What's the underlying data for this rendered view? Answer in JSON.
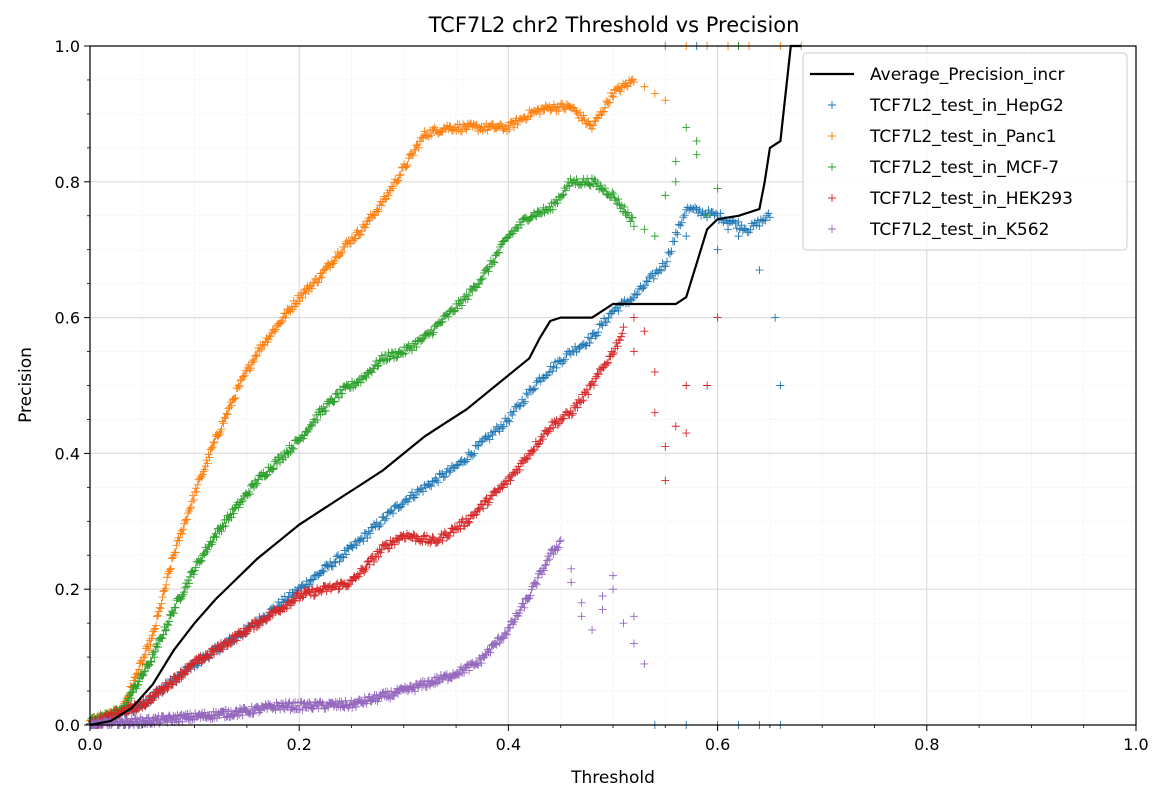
{
  "chart_data": {
    "type": "scatter",
    "title": "TCF7L2 chr2 Threshold vs Precision",
    "xlabel": "Threshold",
    "ylabel": "Precision",
    "xlim": [
      0.0,
      1.0
    ],
    "ylim": [
      0.0,
      1.0
    ],
    "xticks": [
      "0.0",
      "0.2",
      "0.4",
      "0.6",
      "0.8",
      "1.0"
    ],
    "yticks": [
      "0.0",
      "0.2",
      "0.4",
      "0.6",
      "0.8",
      "1.0"
    ],
    "grid": true,
    "minor_grid": true,
    "legend_position": "top-right",
    "line_series": {
      "name": "Average_Precision_incr",
      "color": "#000000",
      "points": [
        [
          0.0,
          0.0
        ],
        [
          0.02,
          0.006
        ],
        [
          0.04,
          0.025
        ],
        [
          0.06,
          0.06
        ],
        [
          0.08,
          0.11
        ],
        [
          0.1,
          0.15
        ],
        [
          0.12,
          0.185
        ],
        [
          0.14,
          0.215
        ],
        [
          0.16,
          0.245
        ],
        [
          0.18,
          0.27
        ],
        [
          0.2,
          0.295
        ],
        [
          0.22,
          0.315
        ],
        [
          0.24,
          0.335
        ],
        [
          0.26,
          0.355
        ],
        [
          0.28,
          0.375
        ],
        [
          0.3,
          0.4
        ],
        [
          0.32,
          0.425
        ],
        [
          0.34,
          0.445
        ],
        [
          0.36,
          0.465
        ],
        [
          0.38,
          0.49
        ],
        [
          0.4,
          0.515
        ],
        [
          0.42,
          0.54
        ],
        [
          0.43,
          0.57
        ],
        [
          0.44,
          0.595
        ],
        [
          0.45,
          0.6
        ],
        [
          0.48,
          0.6
        ],
        [
          0.5,
          0.62
        ],
        [
          0.56,
          0.62
        ],
        [
          0.57,
          0.63
        ],
        [
          0.58,
          0.68
        ],
        [
          0.59,
          0.73
        ],
        [
          0.6,
          0.745
        ],
        [
          0.62,
          0.75
        ],
        [
          0.64,
          0.76
        ],
        [
          0.645,
          0.8
        ],
        [
          0.65,
          0.85
        ],
        [
          0.66,
          0.86
        ],
        [
          0.665,
          0.93
        ],
        [
          0.67,
          1.0
        ],
        [
          0.68,
          1.0
        ]
      ]
    },
    "series": [
      {
        "name": "TCF7L2_test_in_HepG2",
        "color": "#1f77b4",
        "anchors": [
          [
            0.0,
            0.0
          ],
          [
            0.05,
            0.03
          ],
          [
            0.1,
            0.09
          ],
          [
            0.15,
            0.14
          ],
          [
            0.2,
            0.2
          ],
          [
            0.25,
            0.26
          ],
          [
            0.3,
            0.33
          ],
          [
            0.35,
            0.38
          ],
          [
            0.4,
            0.45
          ],
          [
            0.43,
            0.51
          ],
          [
            0.46,
            0.55
          ],
          [
            0.48,
            0.57
          ],
          [
            0.5,
            0.61
          ],
          [
            0.52,
            0.63
          ],
          [
            0.55,
            0.68
          ],
          [
            0.57,
            0.76
          ],
          [
            0.6,
            0.75
          ],
          [
            0.63,
            0.73
          ],
          [
            0.65,
            0.75
          ]
        ],
        "outliers": [
          [
            0.58,
            0.76
          ],
          [
            0.61,
            0.73
          ],
          [
            0.62,
            0.72
          ],
          [
            0.64,
            0.67
          ],
          [
            0.655,
            0.6
          ],
          [
            0.66,
            0.5
          ],
          [
            0.57,
            0.72
          ],
          [
            0.6,
            0.7
          ],
          [
            0.55,
            1.0
          ],
          [
            0.58,
            1.0
          ],
          [
            0.62,
            1.0
          ],
          [
            0.54,
            0.0
          ],
          [
            0.57,
            0.0
          ],
          [
            0.6,
            0.0
          ],
          [
            0.62,
            0.0
          ],
          [
            0.64,
            0.0
          ],
          [
            0.66,
            0.0
          ]
        ]
      },
      {
        "name": "TCF7L2_test_in_Panc1",
        "color": "#ff7f0e",
        "anchors": [
          [
            0.0,
            0.005
          ],
          [
            0.03,
            0.02
          ],
          [
            0.06,
            0.13
          ],
          [
            0.08,
            0.25
          ],
          [
            0.1,
            0.34
          ],
          [
            0.12,
            0.42
          ],
          [
            0.14,
            0.49
          ],
          [
            0.16,
            0.55
          ],
          [
            0.18,
            0.59
          ],
          [
            0.2,
            0.63
          ],
          [
            0.22,
            0.66
          ],
          [
            0.24,
            0.7
          ],
          [
            0.26,
            0.73
          ],
          [
            0.28,
            0.77
          ],
          [
            0.3,
            0.82
          ],
          [
            0.32,
            0.87
          ],
          [
            0.34,
            0.88
          ],
          [
            0.36,
            0.88
          ],
          [
            0.38,
            0.88
          ],
          [
            0.4,
            0.88
          ],
          [
            0.42,
            0.9
          ],
          [
            0.44,
            0.91
          ],
          [
            0.46,
            0.91
          ],
          [
            0.48,
            0.88
          ],
          [
            0.5,
            0.93
          ],
          [
            0.52,
            0.95
          ]
        ],
        "outliers": [
          [
            0.53,
            0.94
          ],
          [
            0.54,
            0.93
          ],
          [
            0.55,
            0.92
          ],
          [
            0.55,
            1.0
          ],
          [
            0.57,
            1.0
          ],
          [
            0.59,
            1.0
          ],
          [
            0.61,
            1.0
          ],
          [
            0.63,
            1.0
          ],
          [
            0.66,
            1.0
          ],
          [
            0.68,
            1.0
          ]
        ]
      },
      {
        "name": "TCF7L2_test_in_MCF-7",
        "color": "#2ca02c",
        "anchors": [
          [
            0.0,
            0.005
          ],
          [
            0.03,
            0.02
          ],
          [
            0.06,
            0.1
          ],
          [
            0.08,
            0.17
          ],
          [
            0.1,
            0.23
          ],
          [
            0.12,
            0.28
          ],
          [
            0.14,
            0.32
          ],
          [
            0.16,
            0.36
          ],
          [
            0.18,
            0.39
          ],
          [
            0.2,
            0.42
          ],
          [
            0.22,
            0.46
          ],
          [
            0.24,
            0.49
          ],
          [
            0.26,
            0.51
          ],
          [
            0.28,
            0.54
          ],
          [
            0.3,
            0.55
          ],
          [
            0.32,
            0.57
          ],
          [
            0.34,
            0.6
          ],
          [
            0.36,
            0.63
          ],
          [
            0.38,
            0.67
          ],
          [
            0.4,
            0.72
          ],
          [
            0.42,
            0.75
          ],
          [
            0.44,
            0.76
          ],
          [
            0.46,
            0.8
          ],
          [
            0.48,
            0.8
          ],
          [
            0.5,
            0.78
          ],
          [
            0.52,
            0.74
          ]
        ],
        "outliers": [
          [
            0.53,
            0.73
          ],
          [
            0.54,
            0.72
          ],
          [
            0.56,
            0.8
          ],
          [
            0.57,
            0.88
          ],
          [
            0.58,
            0.86
          ],
          [
            0.58,
            0.84
          ],
          [
            0.55,
            0.78
          ],
          [
            0.56,
            0.83
          ],
          [
            0.6,
            0.79
          ],
          [
            0.62,
            1.0
          ],
          [
            0.59,
            0.75
          ]
        ]
      },
      {
        "name": "TCF7L2_test_in_HEK293",
        "color": "#d62728",
        "anchors": [
          [
            0.0,
            0.0
          ],
          [
            0.05,
            0.03
          ],
          [
            0.1,
            0.09
          ],
          [
            0.15,
            0.14
          ],
          [
            0.2,
            0.19
          ],
          [
            0.25,
            0.21
          ],
          [
            0.28,
            0.26
          ],
          [
            0.3,
            0.28
          ],
          [
            0.33,
            0.27
          ],
          [
            0.36,
            0.3
          ],
          [
            0.4,
            0.36
          ],
          [
            0.42,
            0.4
          ],
          [
            0.44,
            0.44
          ],
          [
            0.46,
            0.46
          ],
          [
            0.48,
            0.5
          ],
          [
            0.5,
            0.55
          ],
          [
            0.51,
            0.58
          ]
        ],
        "outliers": [
          [
            0.52,
            0.55
          ],
          [
            0.52,
            0.6
          ],
          [
            0.53,
            0.58
          ],
          [
            0.54,
            0.52
          ],
          [
            0.54,
            0.46
          ],
          [
            0.55,
            0.41
          ],
          [
            0.55,
            0.36
          ],
          [
            0.56,
            0.44
          ],
          [
            0.57,
            0.5
          ],
          [
            0.57,
            0.43
          ],
          [
            0.59,
            0.5
          ],
          [
            0.6,
            0.6
          ]
        ]
      },
      {
        "name": "TCF7L2_test_in_K562",
        "color": "#9467bd",
        "anchors": [
          [
            0.0,
            0.0
          ],
          [
            0.05,
            0.005
          ],
          [
            0.1,
            0.012
          ],
          [
            0.15,
            0.02
          ],
          [
            0.18,
            0.028
          ],
          [
            0.2,
            0.028
          ],
          [
            0.25,
            0.03
          ],
          [
            0.3,
            0.05
          ],
          [
            0.34,
            0.07
          ],
          [
            0.37,
            0.09
          ],
          [
            0.4,
            0.14
          ],
          [
            0.42,
            0.19
          ],
          [
            0.44,
            0.25
          ],
          [
            0.45,
            0.27
          ]
        ],
        "outliers": [
          [
            0.46,
            0.23
          ],
          [
            0.46,
            0.21
          ],
          [
            0.47,
            0.16
          ],
          [
            0.48,
            0.14
          ],
          [
            0.49,
            0.17
          ],
          [
            0.5,
            0.2
          ],
          [
            0.5,
            0.22
          ],
          [
            0.51,
            0.15
          ],
          [
            0.52,
            0.12
          ],
          [
            0.52,
            0.16
          ],
          [
            0.53,
            0.09
          ],
          [
            0.47,
            0.18
          ],
          [
            0.49,
            0.19
          ]
        ]
      }
    ]
  }
}
